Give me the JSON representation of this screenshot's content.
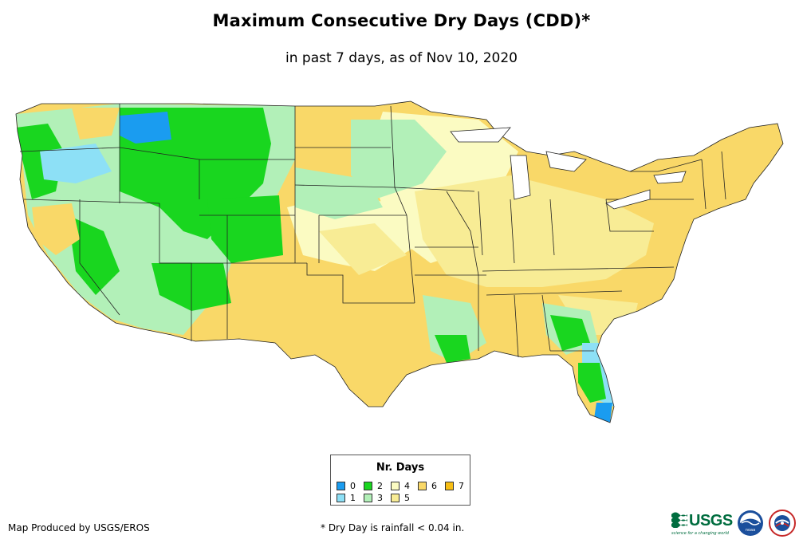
{
  "header": {
    "title": "Maximum Consecutive Dry Days (CDD)*",
    "subtitle": "in past 7 days, as of Nov 10, 2020"
  },
  "legend": {
    "title": "Nr. Days",
    "items": [
      {
        "label": "0",
        "color": "#1a9cf0"
      },
      {
        "label": "1",
        "color": "#8de0f6"
      },
      {
        "label": "2",
        "color": "#19d61f"
      },
      {
        "label": "3",
        "color": "#b2f0b8"
      },
      {
        "label": "4",
        "color": "#fbfbc2"
      },
      {
        "label": "5",
        "color": "#f8ec95"
      },
      {
        "label": "6",
        "color": "#f9d868"
      },
      {
        "label": "7",
        "color": "#f7be14"
      }
    ]
  },
  "footer": {
    "credit": "Map Produced by USGS/EROS",
    "footnote": "* Dry Day is rainfall < 0.04 in."
  },
  "logos": {
    "usgs": "USGS",
    "usgs_tagline": "science for a changing world",
    "noaa": "noaa"
  }
}
